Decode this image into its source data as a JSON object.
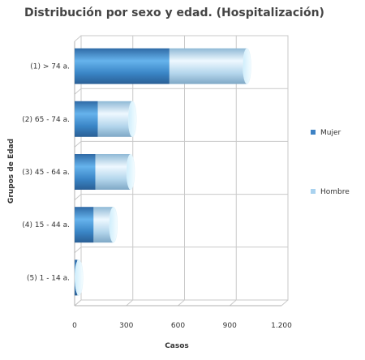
{
  "chart_data": {
    "type": "bar",
    "orientation": "horizontal",
    "stacked": true,
    "style": "3d-cylinder",
    "title": "Distribución por sexo y edad. (Hospitalización)",
    "xlabel": "Casos",
    "ylabel": "Grupos de Edad",
    "categories": [
      "(1) > 74 a.",
      "(2) 65 - 74 a.",
      "(3) 45 - 64 a.",
      "(4) 15 - 44 a.",
      "(5) 1 - 14 a."
    ],
    "series": [
      {
        "name": "Mujer",
        "values": [
          550,
          135,
          120,
          110,
          15
        ]
      },
      {
        "name": "Hombre",
        "values": [
          450,
          200,
          205,
          115,
          10
        ]
      }
    ],
    "xlim": [
      0,
      1200
    ],
    "x_ticks": [
      "0",
      "300",
      "600",
      "900",
      "1.200"
    ],
    "x_tick_values": [
      0,
      300,
      600,
      900,
      1200
    ],
    "grid": true,
    "legend_placement": "right",
    "colors": {
      "Mujer": "#3d82c4",
      "Hombre": "#a9d2ef"
    }
  }
}
